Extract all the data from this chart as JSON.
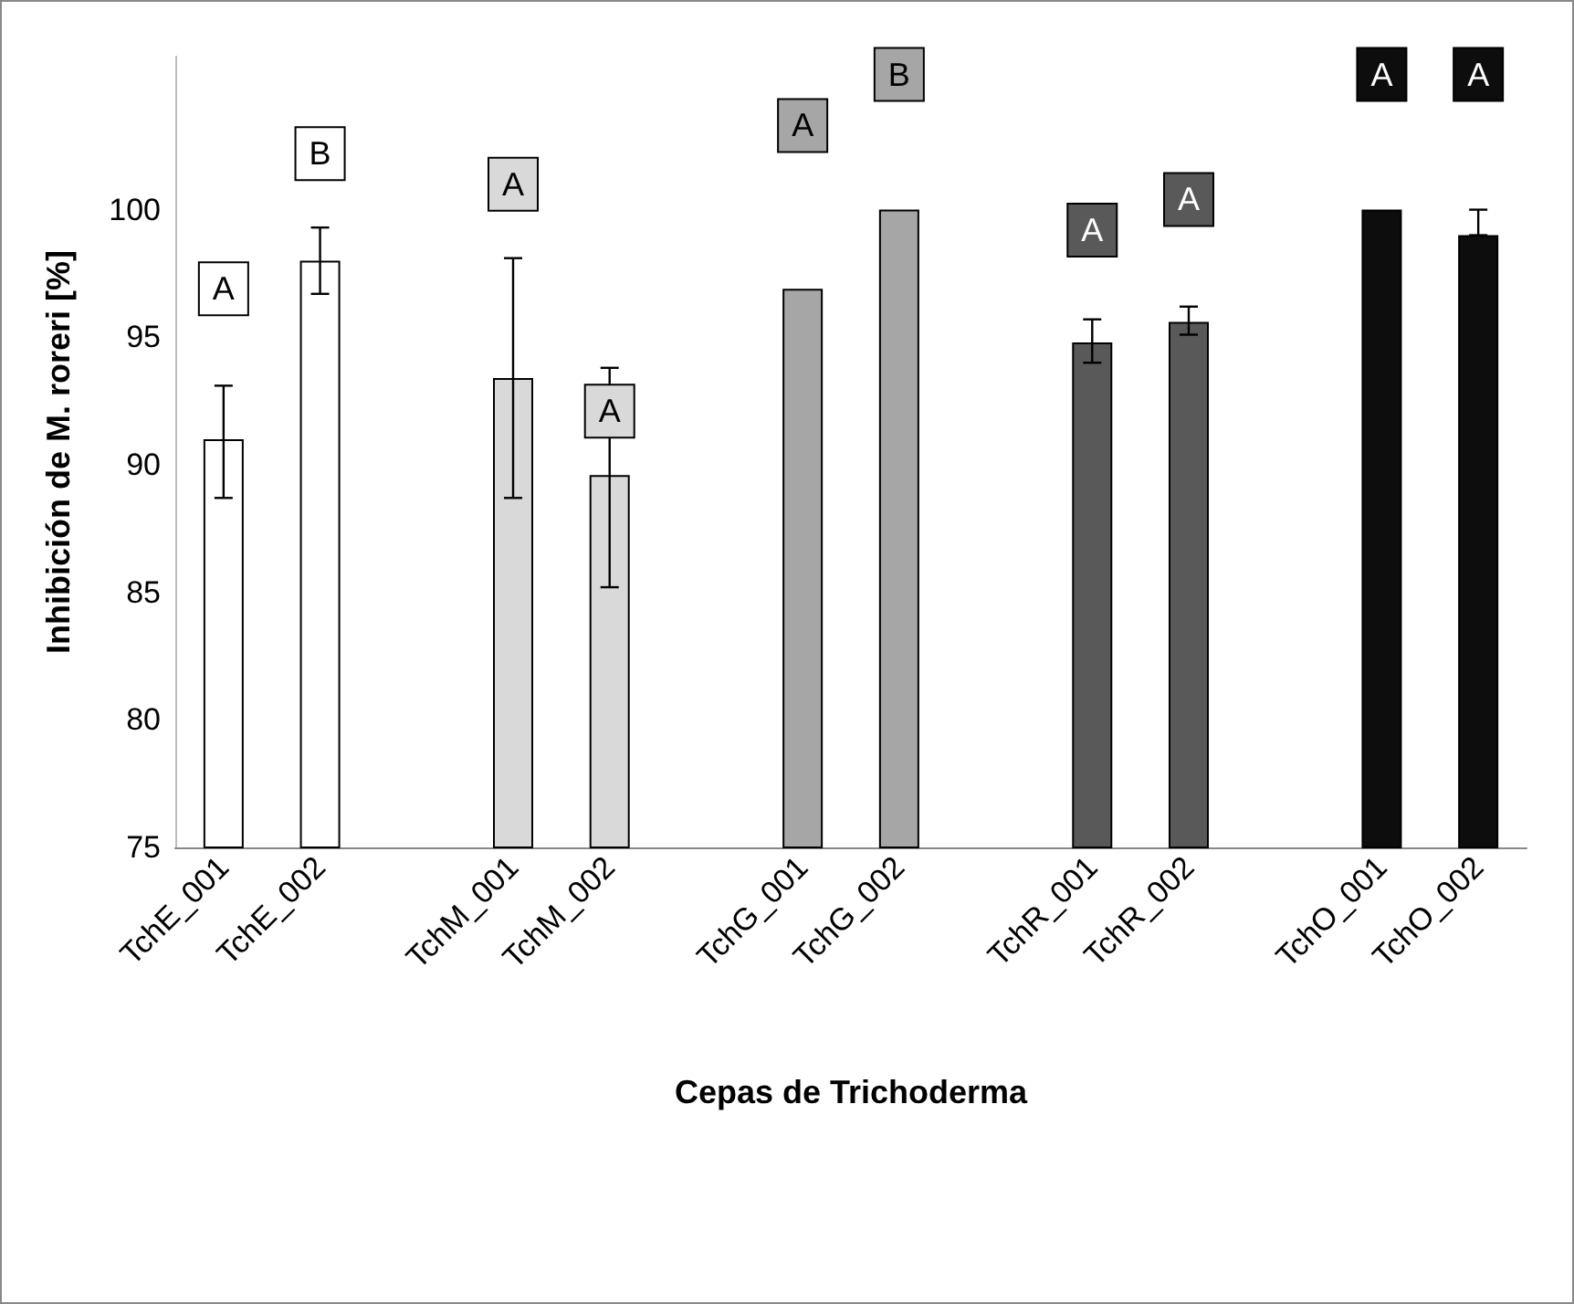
{
  "chart_data": {
    "type": "bar",
    "xlabel": "Cepas de Trichoderma",
    "ylabel": "Inhibición de M. roreri [%]",
    "categories": [
      "TchE_001",
      "TchE_002",
      null,
      "TchM_001",
      "TchM_002",
      null,
      "TchG_001",
      "TchG_002",
      null,
      "TchR_001",
      "TchR_002",
      null,
      "TchO_001",
      "TchO_002"
    ],
    "values": [
      91.0,
      98.0,
      null,
      93.4,
      89.6,
      null,
      96.9,
      100,
      null,
      94.8,
      95.6,
      null,
      100,
      99.0
    ],
    "colors": [
      "#ffffff",
      "#ffffff",
      "#ffffff",
      "#d9d9d9",
      "#d9d9d9",
      "#d9d9d9",
      "#a6a6a6",
      "#a6a6a6",
      "#a6a6a6",
      "#595959",
      "#595959",
      "#595959",
      "#0d0d0d",
      "#0d0d0d"
    ],
    "errors": [
      [
        88.7,
        93.1
      ],
      [
        96.7,
        99.3
      ],
      null,
      [
        88.7,
        98.1
      ],
      [
        85.2,
        93.8
      ],
      null,
      null,
      null,
      null,
      [
        94.0,
        95.7
      ],
      [
        95.1,
        96.2
      ],
      null,
      null,
      [
        99.0,
        100
      ]
    ],
    "ylim": [
      75,
      106
    ],
    "yticks": [
      75,
      80,
      85,
      90,
      95,
      100
    ],
    "grid": false,
    "annotations": [
      {
        "text": "A",
        "x": "TchE_001",
        "y": 96.9
      },
      {
        "text": "B",
        "x": "TchE_002",
        "y": 102.2
      },
      {
        "text": "A",
        "x": "TchM_001",
        "y": 101
      },
      {
        "text": "A",
        "x": "TchM_002",
        "y": 92.1
      },
      {
        "text": "A",
        "x": "TchG_001",
        "y": 103.3
      },
      {
        "text": "B",
        "x": "TchG_002",
        "y": 105.3
      },
      {
        "text": "A",
        "x": "TchR_001",
        "y": 99.2
      },
      {
        "text": "A",
        "x": "TchR_002",
        "y": 100.4
      },
      {
        "text": "A",
        "x": "TchO_001",
        "y": 105.3
      },
      {
        "text": "A",
        "x": "TchO_002",
        "y": 105.3
      }
    ]
  }
}
